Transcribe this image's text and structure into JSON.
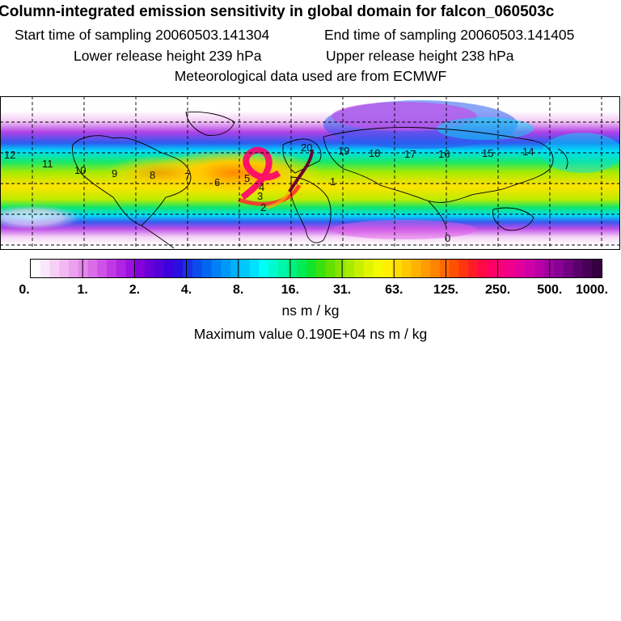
{
  "header": {
    "title": "Column-integrated emission sensitivity in global domain for falcon_060503c",
    "start_label": "Start time of sampling 20060503.141304",
    "end_label": "End time of sampling 20060503.141405",
    "lower_label": "Lower release height  239 hPa",
    "upper_label": "Upper release height  238 hPa",
    "met_label": "Meteorological data used are from ECMWF"
  },
  "map": {
    "track_labels": [
      "12",
      "11",
      "10",
      "9",
      "8",
      "7",
      "6",
      "5",
      "4",
      "3",
      "2",
      "20",
      "19",
      "18",
      "17",
      "16",
      "15",
      "14",
      "1",
      "0"
    ],
    "colors": {
      "land_outline": "#000000",
      "grid": "#000000",
      "flight_track": "#6b0030"
    }
  },
  "colorbar": {
    "tick_labels": [
      "0.",
      "1.",
      "2.",
      "4.",
      "8.",
      "16.",
      "31.",
      "63.",
      "125.",
      "250.",
      "500.",
      "1000."
    ],
    "colors": [
      "#ffffff",
      "#fbe7fb",
      "#f6d0f6",
      "#f1b8f1",
      "#eca0ee",
      "#e487ea",
      "#da6ce8",
      "#ce52e6",
      "#bf38e4",
      "#ae24e0",
      "#9a12dd",
      "#8500d9",
      "#6a00d9",
      "#5400db",
      "#3e00dd",
      "#2a10e0",
      "#1830e6",
      "#0a4cec",
      "#0066f0",
      "#0080f4",
      "#0099f8",
      "#00b0fb",
      "#00c8fd",
      "#00e0ff",
      "#00fff4",
      "#00fbcf",
      "#00f6a8",
      "#00f080",
      "#00eb55",
      "#10e52c",
      "#3ae010",
      "#62e000",
      "#86e400",
      "#a8ea00",
      "#c6f000",
      "#e0f600",
      "#f4fa00",
      "#ffef00",
      "#ffdc00",
      "#ffc800",
      "#ffb300",
      "#ff9c00",
      "#ff8400",
      "#ff6a00",
      "#ff5000",
      "#ff3510",
      "#ff1c28",
      "#ff0a44",
      "#ff0064",
      "#f8007a",
      "#ee008c",
      "#e0009c",
      "#ce00a6",
      "#b800a6",
      "#a000a0",
      "#880094",
      "#700080",
      "#5a006a",
      "#460055",
      "#360040"
    ],
    "unit_label": "ns m / kg"
  },
  "max_label": "Maximum value  0.190E+04 ns m / kg"
}
